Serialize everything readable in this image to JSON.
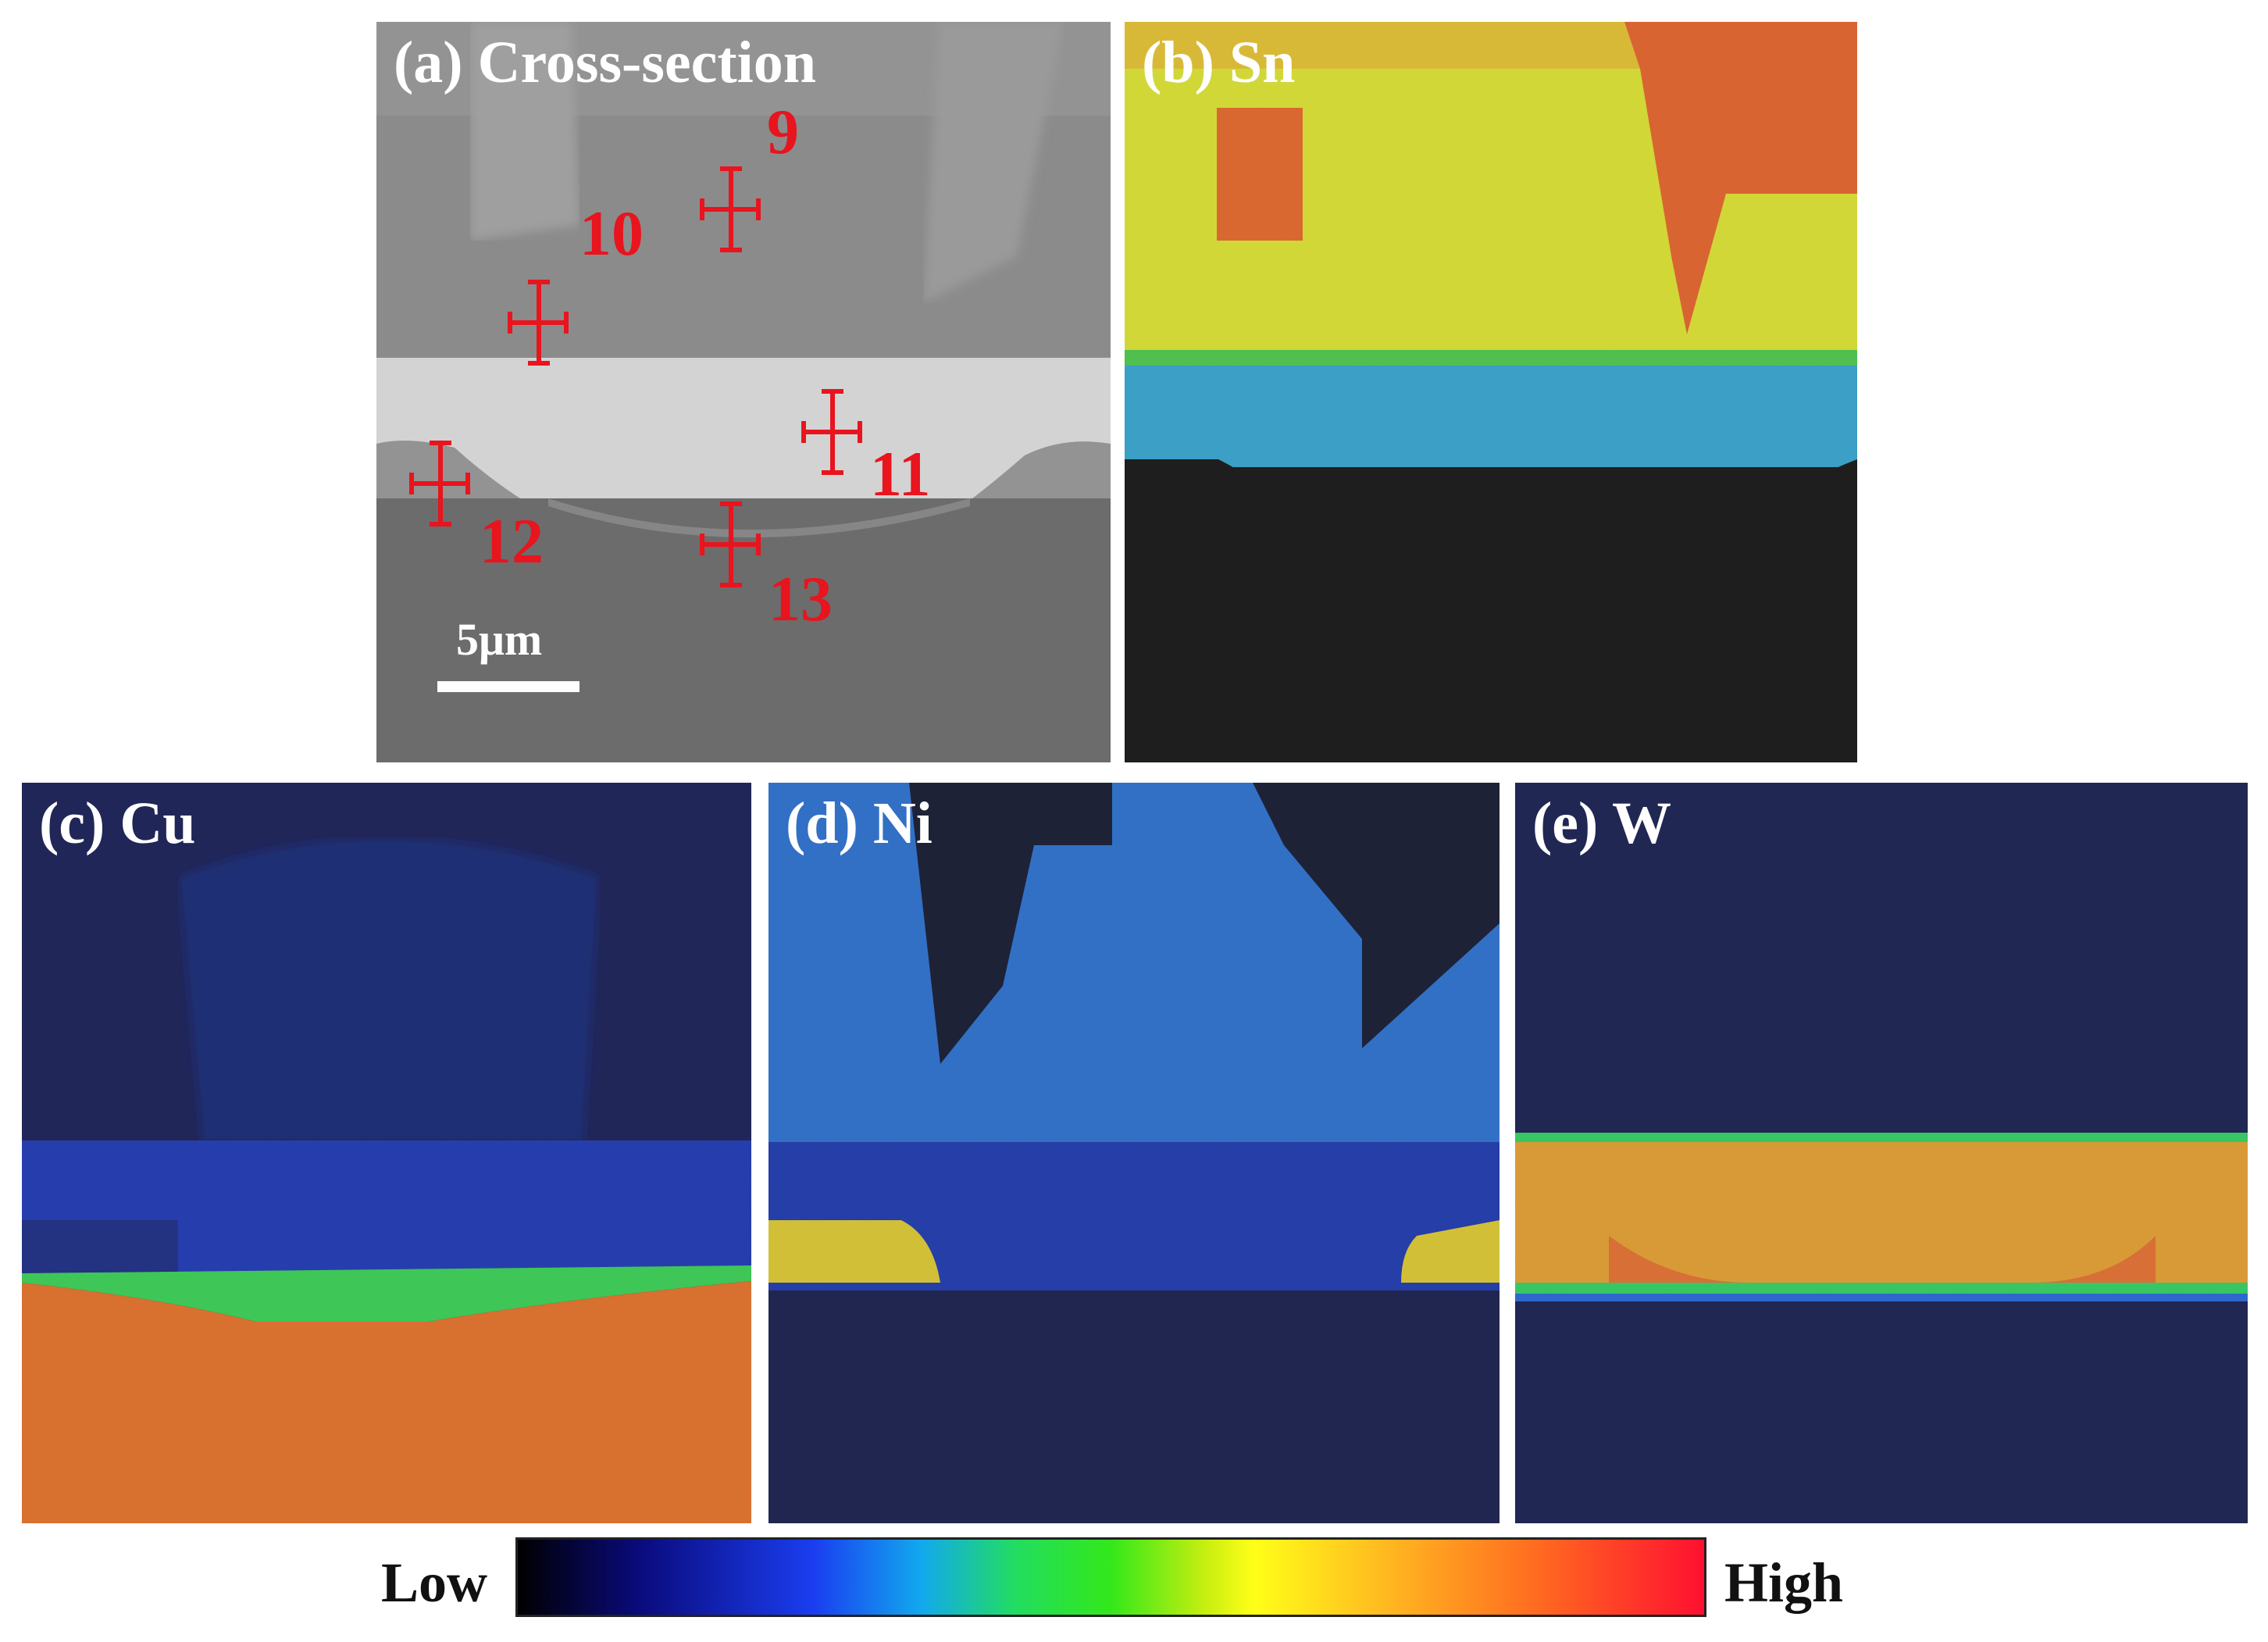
{
  "panels": {
    "a": {
      "label": "(a) Cross-section",
      "scale_label": "5μm"
    },
    "b": {
      "label": "(b) Sn"
    },
    "c": {
      "label": "(c) Cu"
    },
    "d": {
      "label": "(d) Ni"
    },
    "e": {
      "label": "(e) W"
    }
  },
  "markers": [
    "9",
    "10",
    "11",
    "12",
    "13"
  ],
  "colorbar": {
    "low_label": "Low",
    "high_label": "High"
  },
  "colors": {
    "marker": "#e8141e",
    "label": "#ffffff"
  }
}
